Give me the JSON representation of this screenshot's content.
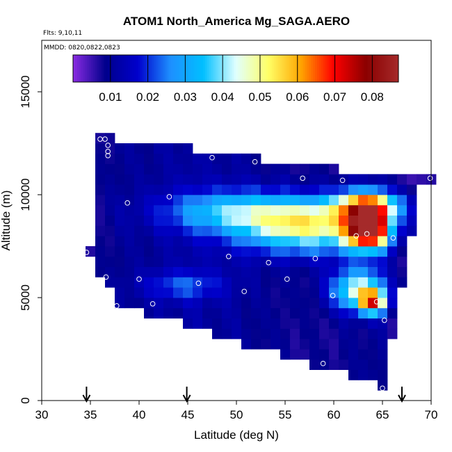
{
  "chart_data": {
    "type": "heatmap",
    "title": "ATOM1 North_America Mg_SAGA.AERO",
    "subtitle_flights": "Flts: 9,10,11",
    "subtitle_dates": "MMDD: 0820,0822,0823",
    "xlabel": "Latitude (deg N)",
    "ylabel": "Altitude (m)",
    "xlim": [
      30,
      70
    ],
    "ylim": [
      0,
      17500
    ],
    "x_ticks": [
      "30",
      "35",
      "40",
      "45",
      "50",
      "55",
      "60",
      "65",
      "70"
    ],
    "y_ticks": [
      "0",
      "5000",
      "10000",
      "15000"
    ],
    "colorbar": {
      "range": [
        0,
        0.087
      ],
      "tick_labels": [
        "0.01",
        "0.02",
        "0.03",
        "0.04",
        "0.05",
        "0.06",
        "0.07",
        "0.08"
      ],
      "colors": [
        "#8a2be2",
        "#00008b",
        "#0000cd",
        "#1e90ff",
        "#00bfff",
        "#e0ffff",
        "#ffff66",
        "#ffa500",
        "#ff0000",
        "#8b0000",
        "#a52a2a"
      ]
    },
    "arrow_latitudes": [
      34.6,
      44.9,
      67.0
    ],
    "grid": false,
    "lat_bin": 1,
    "alt_bin": 500,
    "columns": [
      {
        "lat": 35,
        "alt_min": 7000,
        "alt_max": 7500,
        "base": 0.006
      },
      {
        "lat": 36,
        "alt_min": 6000,
        "alt_max": 13000,
        "base": 0.008
      },
      {
        "lat": 37,
        "alt_min": 5500,
        "alt_max": 13000,
        "base": 0.009
      },
      {
        "lat": 38,
        "alt_min": 4500,
        "alt_max": 12500,
        "base": 0.01
      },
      {
        "lat": 39,
        "alt_min": 4500,
        "alt_max": 12500,
        "base": 0.01
      },
      {
        "lat": 40,
        "alt_min": 4500,
        "alt_max": 12500,
        "base": 0.01
      },
      {
        "lat": 41,
        "alt_min": 4000,
        "alt_max": 12500,
        "base": 0.01
      },
      {
        "lat": 42,
        "alt_min": 4000,
        "alt_max": 12500,
        "base": 0.011
      },
      {
        "lat": 43,
        "alt_min": 4000,
        "alt_max": 12500,
        "base": 0.011
      },
      {
        "lat": 44,
        "alt_min": 4000,
        "alt_max": 12500,
        "base": 0.011
      },
      {
        "lat": 45,
        "alt_min": 3500,
        "alt_max": 12500,
        "base": 0.012
      },
      {
        "lat": 46,
        "alt_min": 3500,
        "alt_max": 12000,
        "base": 0.012
      },
      {
        "lat": 47,
        "alt_min": 3500,
        "alt_max": 12000,
        "base": 0.011
      },
      {
        "lat": 48,
        "alt_min": 3000,
        "alt_max": 12000,
        "base": 0.011
      },
      {
        "lat": 49,
        "alt_min": 3000,
        "alt_max": 12000,
        "base": 0.011
      },
      {
        "lat": 50,
        "alt_min": 3000,
        "alt_max": 12000,
        "base": 0.011
      },
      {
        "lat": 51,
        "alt_min": 2500,
        "alt_max": 12000,
        "base": 0.01
      },
      {
        "lat": 52,
        "alt_min": 2500,
        "alt_max": 12000,
        "base": 0.01
      },
      {
        "lat": 53,
        "alt_min": 2500,
        "alt_max": 11500,
        "base": 0.009
      },
      {
        "lat": 54,
        "alt_min": 2500,
        "alt_max": 11500,
        "base": 0.009
      },
      {
        "lat": 55,
        "alt_min": 2000,
        "alt_max": 11500,
        "base": 0.009
      },
      {
        "lat": 56,
        "alt_min": 2000,
        "alt_max": 11500,
        "base": 0.008
      },
      {
        "lat": 57,
        "alt_min": 2000,
        "alt_max": 11500,
        "base": 0.008
      },
      {
        "lat": 58,
        "alt_min": 1500,
        "alt_max": 11500,
        "base": 0.008
      },
      {
        "lat": 59,
        "alt_min": 1500,
        "alt_max": 11500,
        "base": 0.008
      },
      {
        "lat": 60,
        "alt_min": 1500,
        "alt_max": 11500,
        "base": 0.008
      },
      {
        "lat": 61,
        "alt_min": 1500,
        "alt_max": 11000,
        "base": 0.009
      },
      {
        "lat": 62,
        "alt_min": 1000,
        "alt_max": 11000,
        "base": 0.009
      },
      {
        "lat": 63,
        "alt_min": 1000,
        "alt_max": 11000,
        "base": 0.009
      },
      {
        "lat": 64,
        "alt_min": 1000,
        "alt_max": 11000,
        "base": 0.01
      },
      {
        "lat": 65,
        "alt_min": 500,
        "alt_max": 11000,
        "base": 0.01
      },
      {
        "lat": 66,
        "alt_min": 3000,
        "alt_max": 11000,
        "base": 0.007
      },
      {
        "lat": 67,
        "alt_min": 5500,
        "alt_max": 11000,
        "base": 0.006
      },
      {
        "lat": 68,
        "alt_min": 8000,
        "alt_max": 11000,
        "base": 0.006
      },
      {
        "lat": 69,
        "alt_min": 10500,
        "alt_max": 11000,
        "base": 0.005
      },
      {
        "lat": 70,
        "alt_min": 10500,
        "alt_max": 11000,
        "base": 0.005
      }
    ],
    "plumes": [
      {
        "lat": 58,
        "alt": 8500,
        "sigma_lat": 5,
        "sigma_alt": 900,
        "amp": 0.042
      },
      {
        "lat": 50,
        "alt": 9200,
        "sigma_lat": 5,
        "sigma_alt": 700,
        "amp": 0.022
      },
      {
        "lat": 64,
        "alt": 8400,
        "sigma_lat": 1.5,
        "sigma_alt": 700,
        "amp": 0.072
      },
      {
        "lat": 64,
        "alt": 9500,
        "sigma_lat": 2.5,
        "sigma_alt": 500,
        "amp": 0.04
      },
      {
        "lat": 63,
        "alt": 5400,
        "sigma_lat": 2,
        "sigma_alt": 700,
        "amp": 0.035
      },
      {
        "lat": 64.5,
        "alt": 4800,
        "sigma_lat": 1,
        "sigma_alt": 400,
        "amp": 0.045
      },
      {
        "lat": 45,
        "alt": 5600,
        "sigma_lat": 3,
        "sigma_alt": 500,
        "amp": 0.012
      }
    ],
    "sample_points": [
      {
        "lat": 34.6,
        "alt": 7200
      },
      {
        "lat": 35.2,
        "alt": 11500
      },
      {
        "lat": 36.0,
        "alt": 12700
      },
      {
        "lat": 36.5,
        "alt": 12700
      },
      {
        "lat": 36.8,
        "alt": 12400
      },
      {
        "lat": 36.8,
        "alt": 12100
      },
      {
        "lat": 36.8,
        "alt": 11900
      },
      {
        "lat": 36.6,
        "alt": 6000
      },
      {
        "lat": 37.7,
        "alt": 4600
      },
      {
        "lat": 38.8,
        "alt": 9600
      },
      {
        "lat": 40.0,
        "alt": 5900
      },
      {
        "lat": 41.4,
        "alt": 4700
      },
      {
        "lat": 43.1,
        "alt": 9900
      },
      {
        "lat": 46.1,
        "alt": 5700
      },
      {
        "lat": 47.5,
        "alt": 11800
      },
      {
        "lat": 49.2,
        "alt": 7000
      },
      {
        "lat": 50.8,
        "alt": 5300
      },
      {
        "lat": 51.9,
        "alt": 11600
      },
      {
        "lat": 53.3,
        "alt": 6700
      },
      {
        "lat": 55.2,
        "alt": 5900
      },
      {
        "lat": 56.8,
        "alt": 10800
      },
      {
        "lat": 58.1,
        "alt": 6900
      },
      {
        "lat": 58.9,
        "alt": 1800
      },
      {
        "lat": 59.9,
        "alt": 5100
      },
      {
        "lat": 60.9,
        "alt": 10700
      },
      {
        "lat": 62.3,
        "alt": 8000
      },
      {
        "lat": 63.4,
        "alt": 8100
      },
      {
        "lat": 64.4,
        "alt": 4800
      },
      {
        "lat": 65.2,
        "alt": 3900
      },
      {
        "lat": 66.1,
        "alt": 7900
      },
      {
        "lat": 65.0,
        "alt": 600
      },
      {
        "lat": 69.9,
        "alt": 10800
      }
    ]
  }
}
